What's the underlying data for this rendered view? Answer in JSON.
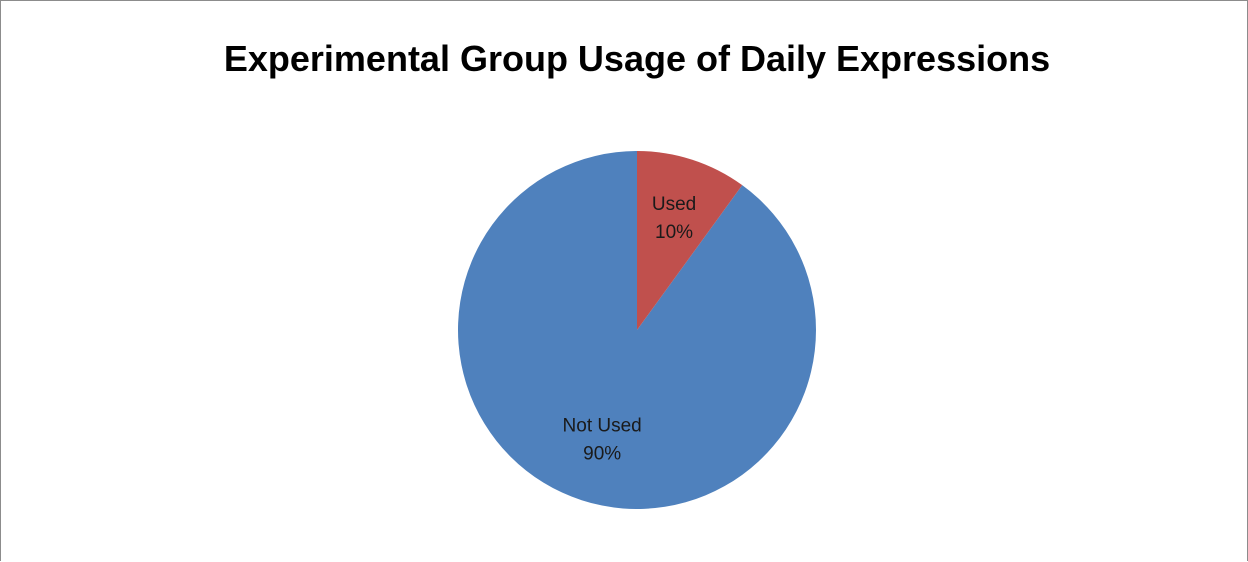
{
  "chart_data": {
    "type": "pie",
    "title": "Experimental Group Usage of Daily Expressions",
    "slices": [
      {
        "name": "Not Used",
        "value": 90,
        "label": "90%",
        "color": "#4f81bd"
      },
      {
        "name": "Used",
        "value": 10,
        "label": "10%",
        "color": "#c0504d"
      }
    ],
    "start_angle_deg": 0,
    "direction": "counterclockwise",
    "legend": "none",
    "data_labels": "inside"
  }
}
